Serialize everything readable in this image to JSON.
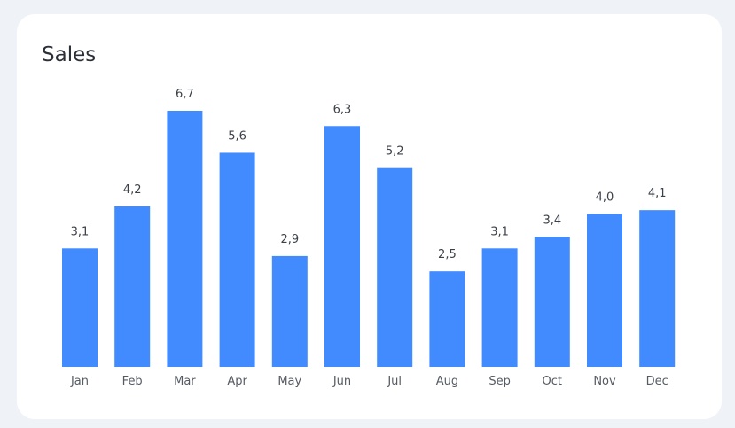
{
  "chart_data": {
    "type": "bar",
    "title": "Sales",
    "categories": [
      "Jan",
      "Feb",
      "Mar",
      "Apr",
      "May",
      "Jun",
      "Jul",
      "Aug",
      "Sep",
      "Oct",
      "Nov",
      "Dec"
    ],
    "values": [
      3.1,
      4.2,
      6.7,
      5.6,
      2.9,
      6.3,
      5.2,
      2.5,
      3.1,
      3.4,
      4.0,
      4.1
    ],
    "value_labels": [
      "3,1",
      "4,2",
      "6,7",
      "5,6",
      "2,9",
      "6,3",
      "5,2",
      "2,5",
      "3,1",
      "3,4",
      "4,0",
      "4,1"
    ],
    "xlabel": "",
    "ylabel": "",
    "ylim": [
      0,
      6.7
    ],
    "grid": false,
    "colors": {
      "bar": "#428bff"
    }
  }
}
